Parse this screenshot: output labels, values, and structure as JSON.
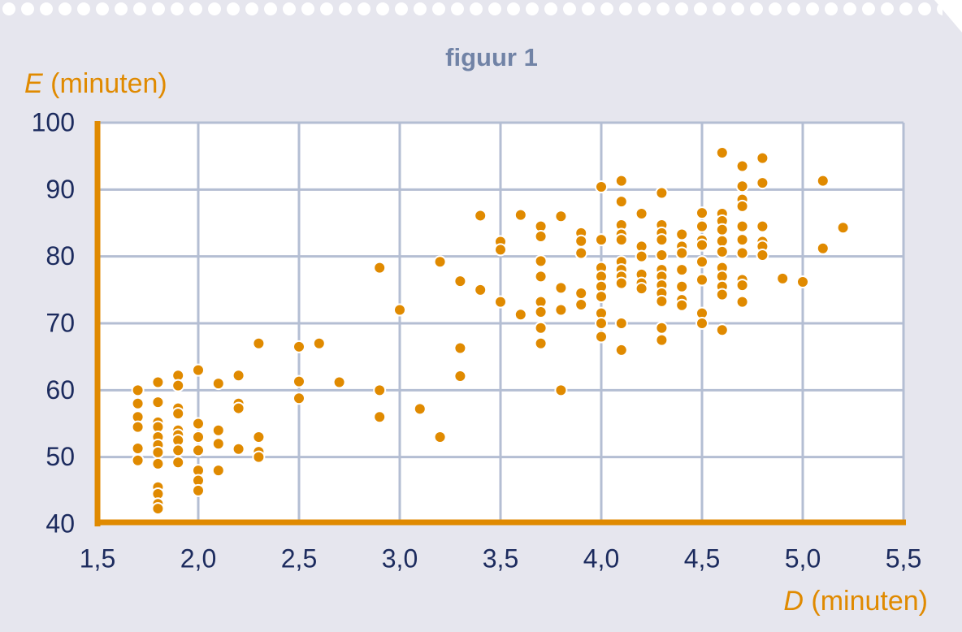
{
  "chart_data": {
    "type": "scatter",
    "title": "figuur 1",
    "ylabel": [
      "E",
      "(minuten)"
    ],
    "xlabel": [
      "D",
      "(minuten)"
    ],
    "color": "#e08a00",
    "grid": true,
    "xlim": [
      1.5,
      5.5
    ],
    "ylim": [
      40,
      100
    ],
    "xticks": [
      {
        "value": 1.5,
        "label": "1,5"
      },
      {
        "value": 2.0,
        "label": "2,0"
      },
      {
        "value": 2.5,
        "label": "2,5"
      },
      {
        "value": 3.0,
        "label": "3,0"
      },
      {
        "value": 3.5,
        "label": "3,5"
      },
      {
        "value": 4.0,
        "label": "4,0"
      },
      {
        "value": 4.5,
        "label": "4,5"
      },
      {
        "value": 5.0,
        "label": "5,0"
      },
      {
        "value": 5.5,
        "label": "5,5"
      }
    ],
    "yticks": [
      40,
      50,
      60,
      70,
      80,
      90,
      100
    ],
    "x": [
      1.7,
      1.7,
      1.7,
      1.7,
      1.7,
      1.7,
      1.8,
      1.8,
      1.8,
      1.8,
      1.8,
      1.8,
      1.8,
      1.8,
      1.8,
      1.8,
      1.8,
      1.8,
      1.9,
      1.9,
      1.9,
      1.9,
      1.9,
      1.9,
      1.9,
      1.9,
      1.9,
      2.0,
      2.0,
      2.0,
      2.0,
      2.0,
      2.0,
      2.0,
      2.1,
      2.1,
      2.1,
      2.1,
      2.2,
      2.2,
      2.2,
      2.2,
      2.3,
      2.3,
      2.3,
      2.3,
      2.5,
      2.5,
      2.5,
      2.6,
      2.7,
      2.9,
      2.9,
      2.9,
      3.0,
      3.1,
      3.2,
      3.2,
      3.3,
      3.3,
      3.3,
      3.4,
      3.4,
      3.5,
      3.5,
      3.5,
      3.6,
      3.6,
      3.7,
      3.7,
      3.7,
      3.7,
      3.7,
      3.7,
      3.7,
      3.7,
      3.8,
      3.8,
      3.8,
      3.8,
      3.9,
      3.9,
      3.9,
      3.9,
      3.9,
      4.0,
      4.0,
      4.0,
      4.0,
      4.0,
      4.0,
      4.0,
      4.0,
      4.0,
      4.1,
      4.1,
      4.1,
      4.1,
      4.1,
      4.1,
      4.1,
      4.1,
      4.1,
      4.1,
      4.1,
      4.2,
      4.2,
      4.2,
      4.2,
      4.2,
      4.2,
      4.3,
      4.3,
      4.3,
      4.3,
      4.3,
      4.3,
      4.3,
      4.3,
      4.3,
      4.3,
      4.3,
      4.3,
      4.4,
      4.4,
      4.4,
      4.4,
      4.4,
      4.4,
      4.4,
      4.5,
      4.5,
      4.5,
      4.5,
      4.5,
      4.5,
      4.5,
      4.5,
      4.6,
      4.6,
      4.6,
      4.6,
      4.6,
      4.6,
      4.6,
      4.6,
      4.6,
      4.6,
      4.6,
      4.7,
      4.7,
      4.7,
      4.7,
      4.7,
      4.7,
      4.7,
      4.7,
      4.7,
      4.7,
      4.8,
      4.8,
      4.8,
      4.8,
      4.8,
      4.8,
      4.9,
      5.0,
      5.1,
      5.1,
      5.2
    ],
    "y": [
      60,
      58,
      56,
      54.5,
      51.3,
      49.5,
      61.2,
      58.2,
      55.2,
      54.5,
      53,
      51.8,
      50.7,
      49,
      45.5,
      44.5,
      43,
      42.3,
      62.2,
      60.7,
      57.3,
      56.5,
      54,
      53.3,
      52.5,
      51,
      49.2,
      63,
      55,
      53,
      51,
      48,
      46.5,
      45,
      61,
      54,
      52,
      48,
      62.2,
      58,
      57.3,
      51.2,
      67,
      53,
      50.8,
      50,
      66.5,
      61.3,
      58.8,
      67,
      61.2,
      78.3,
      60,
      56,
      72,
      57.2,
      79.2,
      53,
      76.3,
      66.3,
      62.1,
      86.1,
      75,
      82.2,
      81,
      73.2,
      86.2,
      71.3,
      84.5,
      83,
      79.3,
      77,
      73.2,
      71.7,
      69.3,
      67,
      86,
      75.3,
      72,
      60,
      83.5,
      82.3,
      80.5,
      74.5,
      72.8,
      90.4,
      82.5,
      78.3,
      77,
      75.5,
      74,
      71.5,
      70,
      68,
      91.3,
      88.2,
      84.7,
      83.3,
      82.5,
      79.2,
      78,
      77,
      76,
      70,
      66,
      86.4,
      81.5,
      80,
      77.3,
      76,
      75.2,
      89.5,
      84.7,
      83.5,
      82.5,
      80.2,
      78,
      77,
      75.7,
      74.5,
      73.3,
      69.3,
      67.5,
      83.3,
      81.5,
      80.5,
      78,
      75.5,
      73.5,
      72.7,
      86.5,
      84.5,
      82.4,
      81.7,
      79.2,
      76.5,
      71.5,
      70,
      95.5,
      86.4,
      85.3,
      84,
      82.3,
      80.7,
      78.3,
      77,
      75.5,
      74.3,
      69,
      93.5,
      90.5,
      88.5,
      87.5,
      84.5,
      82.5,
      80.5,
      76.5,
      75.7,
      73.2,
      94.7,
      91,
      84.5,
      82.2,
      81.5,
      80.2,
      76.7,
      76.2,
      91.3,
      81.2,
      84.3
    ]
  }
}
